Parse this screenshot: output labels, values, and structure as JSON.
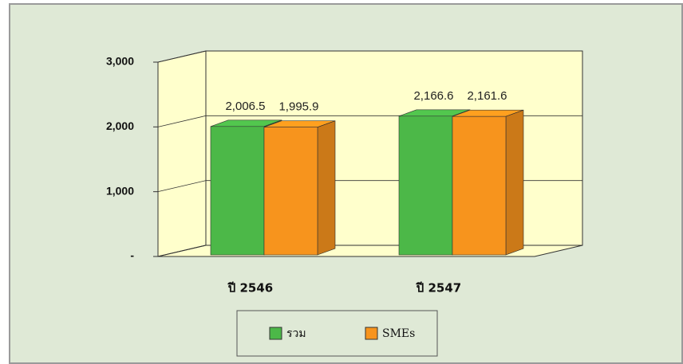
{
  "chart_data": {
    "type": "bar3d",
    "categories": [
      "ปี 2546",
      "ปี 2547"
    ],
    "series": [
      {
        "name": "รวม",
        "color": "#4cb848",
        "values": [
          2006.5,
          2166.6
        ],
        "value_labels": [
          "2,006.5",
          "2,166.6"
        ]
      },
      {
        "name": "SMEs",
        "color": "#f7941d",
        "values": [
          1995.9,
          2161.6
        ],
        "value_labels": [
          "1,995.9",
          "2,161.6"
        ]
      }
    ],
    "ylim": [
      0,
      3000
    ],
    "yticks": [
      {
        "value": 0,
        "label": "-"
      },
      {
        "value": 1000,
        "label": "1,000"
      },
      {
        "value": 2000,
        "label": "2,000"
      },
      {
        "value": 3000,
        "label": "3,000"
      }
    ],
    "grid": true,
    "legend": "bottom"
  }
}
